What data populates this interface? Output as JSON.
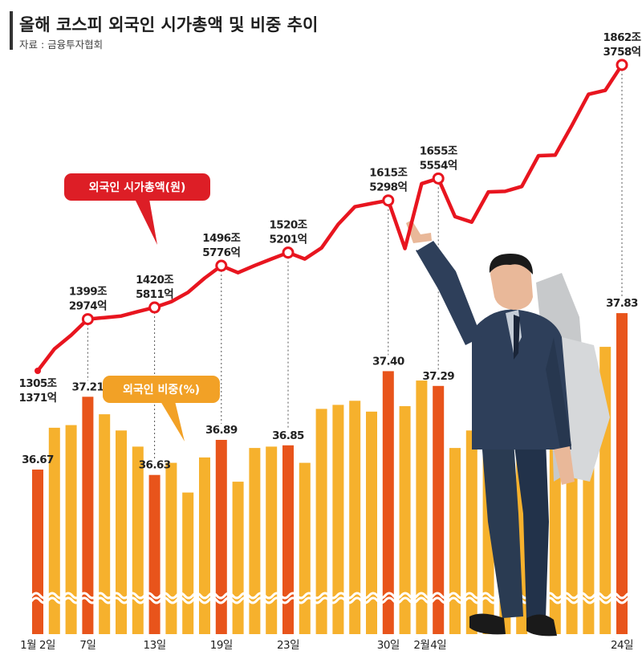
{
  "header": {
    "title": "올해 코스피 외국인 시가총액 및 비중 추이",
    "source": "자료 : 금융투자협회"
  },
  "legend": {
    "cap_label": "외국인 시가총액(원)",
    "share_label": "외국인 비중(%)"
  },
  "colors": {
    "line": "#e8151f",
    "bar_normal": "#f6b12d",
    "bar_highlight": "#e8541b",
    "cap_callout": "#dd1e26",
    "share_callout": "#f2a126"
  },
  "chart_data": [
    {
      "type": "line",
      "title": "외국인 시가총액(원)",
      "unit": "조 원",
      "points": [
        {
          "x": "1월 2일",
          "y": 1305.1371,
          "label": [
            "1305조",
            "1371억"
          ]
        },
        {
          "y": 1345
        },
        {
          "y": 1370
        },
        {
          "x": "7일",
          "y": 1399.2974,
          "label": [
            "1399조",
            "2974억"
          ]
        },
        {
          "y": 1402
        },
        {
          "y": 1405
        },
        {
          "y": 1413
        },
        {
          "x": "13일",
          "y": 1420.5811,
          "label": [
            "1420조",
            "5811억"
          ]
        },
        {
          "y": 1431
        },
        {
          "y": 1448
        },
        {
          "y": 1474
        },
        {
          "x": "19일",
          "y": 1496.5776,
          "label": [
            "1496조",
            "5776억"
          ]
        },
        {
          "y": 1484
        },
        {
          "y": 1497
        },
        {
          "y": 1509
        },
        {
          "x": "23일",
          "y": 1520.5201,
          "label": [
            "1520조",
            "5201억"
          ]
        },
        {
          "y": 1509
        },
        {
          "y": 1529
        },
        {
          "y": 1572
        },
        {
          "y": 1604
        },
        {
          "y": 1610
        },
        {
          "x": "30일",
          "y": 1615.5298,
          "label": [
            "1615조",
            "5298억"
          ]
        },
        {
          "y": 1528
        },
        {
          "x": "2월",
          "y": 1646
        },
        {
          "x": "4일",
          "y": 1655.5554,
          "label": [
            "1655조",
            "5554억"
          ]
        },
        {
          "y": 1586
        },
        {
          "y": 1576
        },
        {
          "y": 1631
        },
        {
          "y": 1632
        },
        {
          "y": 1641
        },
        {
          "y": 1697
        },
        {
          "y": 1698
        },
        {
          "y": 1752
        },
        {
          "y": 1809
        },
        {
          "y": 1816
        },
        {
          "x": "24일",
          "y": 1862.3758,
          "label": [
            "1862조",
            "3758억"
          ]
        }
      ]
    },
    {
      "type": "bar",
      "title": "외국인 비중(%)",
      "unit": "%",
      "x_ticks": [
        "1월 2일",
        "7일",
        "13일",
        "19일",
        "23일",
        "30일",
        "2월",
        "4일",
        "24일"
      ],
      "values": [
        36.67,
        36.98,
        37.0,
        37.21,
        37.08,
        36.96,
        36.84,
        36.63,
        36.72,
        36.5,
        36.76,
        36.89,
        36.58,
        36.83,
        36.84,
        36.85,
        36.72,
        37.12,
        37.15,
        37.18,
        37.1,
        37.4,
        37.14,
        37.33,
        37.29,
        36.83,
        36.96,
        37.16,
        37.2,
        37.24,
        37.29,
        37.38,
        37.42,
        37.48,
        37.58,
        37.83
      ],
      "highlight_labels": [
        "36.67",
        "37.21",
        "36.63",
        "36.89",
        "36.85",
        "37.40",
        "37.29",
        "37.83"
      ]
    }
  ]
}
